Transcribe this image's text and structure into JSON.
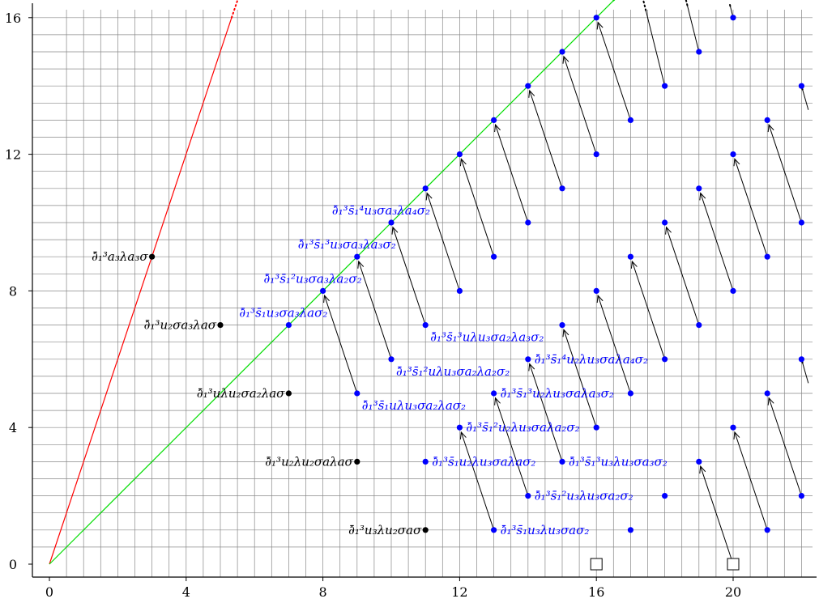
{
  "chart_data": {
    "type": "scatter",
    "title": "",
    "xlabel": "",
    "ylabel": "",
    "xlim": [
      0,
      22
    ],
    "ylim": [
      0,
      16
    ],
    "grid": true,
    "x_ticks": [
      0,
      4,
      8,
      12,
      16,
      20
    ],
    "y_ticks": [
      0,
      4,
      8,
      12,
      16
    ],
    "colors": {
      "black": "#000000",
      "blue": "#0000ff",
      "red": "#ff0000",
      "green": "#00dd00",
      "grid": "#888888"
    },
    "lines": [
      {
        "color": "red",
        "from": [
          0,
          0
        ],
        "to": [
          5.33,
          16
        ],
        "dotted_to": [
          5.5,
          16.5
        ]
      },
      {
        "color": "green",
        "from": [
          0,
          0
        ],
        "to": [
          16.5,
          16.5
        ],
        "dotted_to": [
          17,
          17
        ]
      }
    ],
    "points": [
      {
        "x": 3,
        "y": 9,
        "color": "black"
      },
      {
        "x": 5,
        "y": 7,
        "color": "black"
      },
      {
        "x": 7,
        "y": 5,
        "color": "black"
      },
      {
        "x": 9,
        "y": 3,
        "color": "black"
      },
      {
        "x": 11,
        "y": 1,
        "color": "black"
      },
      {
        "x": 7,
        "y": 7,
        "color": "blue"
      },
      {
        "x": 8,
        "y": 8,
        "color": "blue"
      },
      {
        "x": 9,
        "y": 9,
        "color": "blue"
      },
      {
        "x": 10,
        "y": 10,
        "color": "blue"
      },
      {
        "x": 11,
        "y": 11,
        "color": "blue"
      },
      {
        "x": 12,
        "y": 12,
        "color": "blue"
      },
      {
        "x": 13,
        "y": 13,
        "color": "blue"
      },
      {
        "x": 14,
        "y": 14,
        "color": "blue"
      },
      {
        "x": 15,
        "y": 15,
        "color": "blue"
      },
      {
        "x": 16,
        "y": 16,
        "color": "blue"
      },
      {
        "x": 9,
        "y": 5,
        "color": "blue"
      },
      {
        "x": 10,
        "y": 6,
        "color": "blue"
      },
      {
        "x": 11,
        "y": 7,
        "color": "blue"
      },
      {
        "x": 12,
        "y": 8,
        "color": "blue"
      },
      {
        "x": 13,
        "y": 9,
        "color": "blue"
      },
      {
        "x": 14,
        "y": 10,
        "color": "blue"
      },
      {
        "x": 15,
        "y": 11,
        "color": "blue"
      },
      {
        "x": 16,
        "y": 12,
        "color": "blue"
      },
      {
        "x": 17,
        "y": 13,
        "color": "blue"
      },
      {
        "x": 18,
        "y": 14,
        "color": "blue"
      },
      {
        "x": 19,
        "y": 15,
        "color": "blue"
      },
      {
        "x": 20,
        "y": 16,
        "color": "blue"
      },
      {
        "x": 11,
        "y": 3,
        "color": "blue"
      },
      {
        "x": 12,
        "y": 4,
        "color": "blue"
      },
      {
        "x": 13,
        "y": 5,
        "color": "blue"
      },
      {
        "x": 14,
        "y": 6,
        "color": "blue"
      },
      {
        "x": 15,
        "y": 7,
        "color": "blue"
      },
      {
        "x": 16,
        "y": 8,
        "color": "blue"
      },
      {
        "x": 17,
        "y": 9,
        "color": "blue"
      },
      {
        "x": 18,
        "y": 10,
        "color": "blue"
      },
      {
        "x": 19,
        "y": 11,
        "color": "blue"
      },
      {
        "x": 20,
        "y": 12,
        "color": "blue"
      },
      {
        "x": 21,
        "y": 13,
        "color": "blue"
      },
      {
        "x": 22,
        "y": 14,
        "color": "blue"
      },
      {
        "x": 13,
        "y": 1,
        "color": "blue"
      },
      {
        "x": 14,
        "y": 2,
        "color": "blue"
      },
      {
        "x": 15,
        "y": 3,
        "color": "blue"
      },
      {
        "x": 16,
        "y": 4,
        "color": "blue"
      },
      {
        "x": 17,
        "y": 5,
        "color": "blue"
      },
      {
        "x": 18,
        "y": 6,
        "color": "blue"
      },
      {
        "x": 19,
        "y": 7,
        "color": "blue"
      },
      {
        "x": 20,
        "y": 8,
        "color": "blue"
      },
      {
        "x": 21,
        "y": 9,
        "color": "blue"
      },
      {
        "x": 22,
        "y": 10,
        "color": "blue"
      },
      {
        "x": 17,
        "y": 1,
        "color": "blue"
      },
      {
        "x": 18,
        "y": 2,
        "color": "blue"
      },
      {
        "x": 19,
        "y": 3,
        "color": "blue"
      },
      {
        "x": 20,
        "y": 4,
        "color": "blue"
      },
      {
        "x": 21,
        "y": 5,
        "color": "blue"
      },
      {
        "x": 22,
        "y": 6,
        "color": "blue"
      },
      {
        "x": 21,
        "y": 1,
        "color": "blue"
      },
      {
        "x": 22,
        "y": 2,
        "color": "blue"
      }
    ],
    "squares": [
      {
        "x": 16,
        "y": 0
      },
      {
        "x": 20,
        "y": 0
      }
    ],
    "arrows": [
      {
        "from": [
          9,
          5
        ],
        "to": [
          8,
          8
        ]
      },
      {
        "from": [
          10,
          6
        ],
        "to": [
          9,
          9
        ]
      },
      {
        "from": [
          11,
          7
        ],
        "to": [
          10,
          10
        ]
      },
      {
        "from": [
          12,
          8
        ],
        "to": [
          11,
          11
        ]
      },
      {
        "from": [
          13,
          9
        ],
        "to": [
          12,
          12
        ]
      },
      {
        "from": [
          14,
          10
        ],
        "to": [
          13,
          13
        ]
      },
      {
        "from": [
          15,
          11
        ],
        "to": [
          14,
          14
        ]
      },
      {
        "from": [
          16,
          12
        ],
        "to": [
          15,
          15
        ]
      },
      {
        "from": [
          17,
          13
        ],
        "to": [
          16,
          16
        ]
      },
      {
        "from": [
          13,
          1
        ],
        "to": [
          12,
          4
        ]
      },
      {
        "from": [
          14,
          2
        ],
        "to": [
          13,
          5
        ]
      },
      {
        "from": [
          15,
          3
        ],
        "to": [
          14,
          6
        ]
      },
      {
        "from": [
          16,
          4
        ],
        "to": [
          15,
          7
        ]
      },
      {
        "from": [
          17,
          5
        ],
        "to": [
          16,
          8
        ]
      },
      {
        "from": [
          18,
          6
        ],
        "to": [
          17,
          9
        ]
      },
      {
        "from": [
          19,
          7
        ],
        "to": [
          18,
          10
        ]
      },
      {
        "from": [
          20,
          8
        ],
        "to": [
          19,
          11
        ]
      },
      {
        "from": [
          21,
          9
        ],
        "to": [
          20,
          12
        ]
      },
      {
        "from": [
          22,
          10
        ],
        "to": [
          21,
          13
        ]
      },
      {
        "from": [
          20,
          0
        ],
        "to": [
          19,
          3
        ]
      },
      {
        "from": [
          21,
          1
        ],
        "to": [
          20,
          4
        ]
      },
      {
        "from": [
          22,
          2
        ],
        "to": [
          21,
          5
        ]
      }
    ],
    "fading_arrows": [
      {
        "from": [
          18,
          14
        ],
        "to": [
          17.35,
          16.6
        ]
      },
      {
        "from": [
          19,
          15
        ],
        "to": [
          18.6,
          16.6
        ]
      },
      {
        "from": [
          20,
          16
        ],
        "to": [
          19.9,
          16.4
        ]
      },
      {
        "from": [
          22.2,
          13.3
        ],
        "to": [
          22,
          14
        ]
      },
      {
        "from": [
          22.2,
          5.3
        ],
        "to": [
          22,
          6
        ]
      }
    ],
    "annotations": [
      {
        "x": 3,
        "y": 9,
        "color": "black",
        "side": "left",
        "text": "∂̄₁³a₃λa₃σ"
      },
      {
        "x": 5,
        "y": 7,
        "color": "black",
        "side": "left",
        "text": "∂̄₁³u₂σa₃λaσ"
      },
      {
        "x": 7,
        "y": 5,
        "color": "black",
        "side": "left",
        "text": "∂̄₁³uλu₂σa₂λaσ"
      },
      {
        "x": 9,
        "y": 3,
        "color": "black",
        "side": "left",
        "text": "∂̄₁³u₂λu₂σaλaσ"
      },
      {
        "x": 11,
        "y": 1,
        "color": "black",
        "side": "left",
        "text": "∂̄₁³u₃λu₂σaσ"
      },
      {
        "x": 7,
        "y": 7,
        "color": "blue",
        "side": "above-left",
        "text": "∂̄₁³s̄₁u₃σa₃λaσ₂"
      },
      {
        "x": 8,
        "y": 8,
        "color": "blue",
        "side": "above-left",
        "text": "∂̄₁³s̄₁²u₃σa₃λa₂σ₂"
      },
      {
        "x": 9,
        "y": 9,
        "color": "blue",
        "side": "above-left",
        "text": "∂̄₁³s̄₁³u₃σa₃λa₃σ₂"
      },
      {
        "x": 10,
        "y": 10,
        "color": "blue",
        "side": "above-left",
        "text": "∂̄₁³s̄₁⁴u₃σa₃λa₄σ₂"
      },
      {
        "x": 9,
        "y": 5,
        "color": "blue",
        "side": "below-right",
        "text": "∂̄₁³s̄₁uλu₃σa₂λaσ₂"
      },
      {
        "x": 10,
        "y": 6,
        "color": "blue",
        "side": "below-right",
        "text": "∂̄₁³s̄₁²uλu₃σa₂λa₂σ₂"
      },
      {
        "x": 11,
        "y": 7,
        "color": "blue",
        "side": "below-right",
        "text": "∂̄₁³s̄₁³uλu₃σa₂λa₃σ₂"
      },
      {
        "x": 11,
        "y": 3,
        "color": "blue",
        "side": "right",
        "text": "∂̄₁³s̄₁u₂λu₃σaλaσ₂"
      },
      {
        "x": 12,
        "y": 4,
        "color": "blue",
        "side": "right",
        "text": "∂̄₁³s̄₁²u₂λu₃σaλa₂σ₂"
      },
      {
        "x": 13,
        "y": 5,
        "color": "blue",
        "side": "right",
        "text": "∂̄₁³s̄₁³u₂λu₃σaλa₃σ₂"
      },
      {
        "x": 14,
        "y": 6,
        "color": "blue",
        "side": "right",
        "text": "∂̄₁³s̄₁⁴u₂λu₃σaλa₄σ₂"
      },
      {
        "x": 13,
        "y": 1,
        "color": "blue",
        "side": "right",
        "text": "∂̄₁³s̄₁u₃λu₃σaσ₂"
      },
      {
        "x": 14,
        "y": 2,
        "color": "blue",
        "side": "right",
        "text": "∂̄₁³s̄₁²u₃λu₃σa₂σ₂"
      },
      {
        "x": 15,
        "y": 3,
        "color": "blue",
        "side": "right",
        "text": "∂̄₁³s̄₁³u₃λu₃σa₃σ₂"
      }
    ]
  }
}
